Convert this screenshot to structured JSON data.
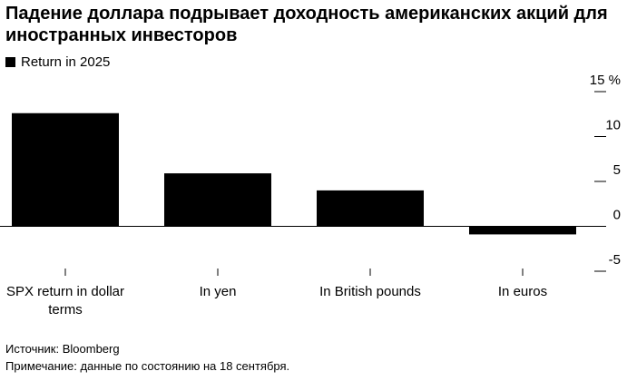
{
  "chart_data": {
    "type": "bar",
    "title": "Падение доллара подрывает доходность американских акций для иностранных инвесторов",
    "legend": "Return in 2025",
    "categories": [
      "SPX return in dollar terms",
      "In yen",
      "In British pounds",
      "In euros"
    ],
    "values": [
      12.6,
      5.9,
      4.0,
      -0.9
    ],
    "color": "#000000",
    "ylim": [
      -5,
      15
    ],
    "yticks": [
      -5,
      0,
      5,
      {
        "value": 10,
        "label": "10"
      },
      {
        "value": 15,
        "label": "15 %"
      }
    ],
    "source": "Источник: Bloomberg",
    "note": "Примечание: данные по состоянию на 18 сентября."
  }
}
